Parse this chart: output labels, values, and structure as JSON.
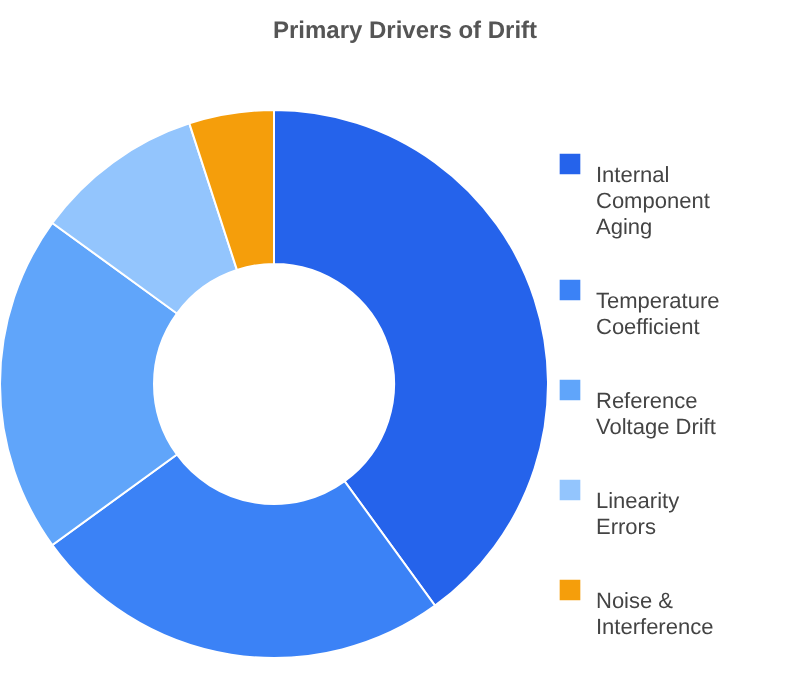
{
  "chart_data": {
    "type": "donut",
    "title": "Primary Drivers of Drift",
    "categories": [
      "Internal Component Aging",
      "Temperature Coefficient",
      "Reference Voltage Drift",
      "Linearity Errors",
      "Noise & Interference"
    ],
    "values": [
      40,
      25,
      20,
      10,
      5
    ],
    "colors": [
      "#2563eb",
      "#3b82f6",
      "#60a5fa",
      "#93c5fd",
      "#f59e0b"
    ],
    "legend": "right"
  }
}
